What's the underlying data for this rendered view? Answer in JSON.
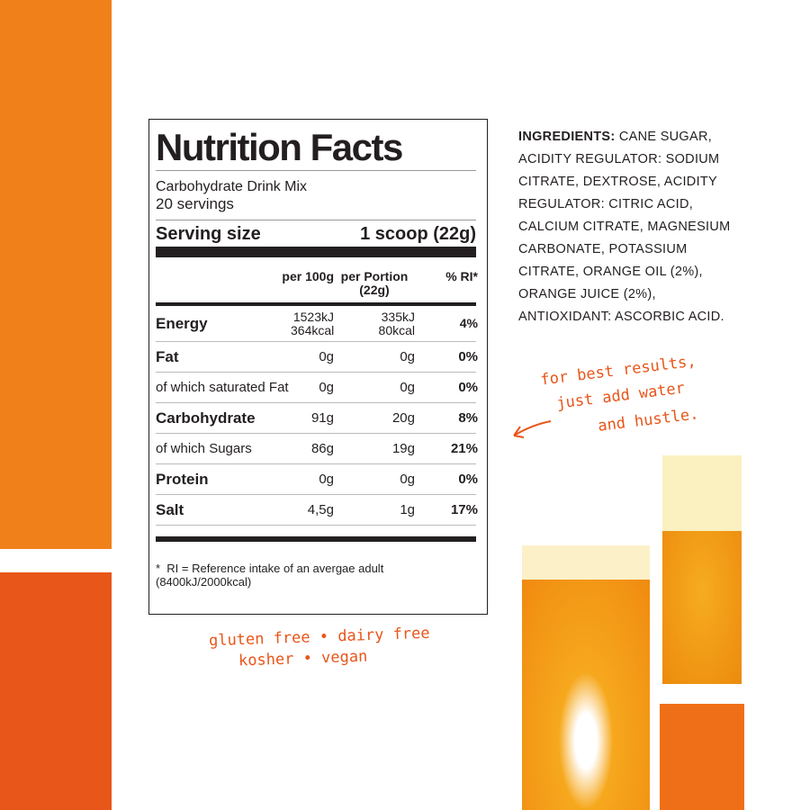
{
  "colors": {
    "bar_top": "#f08019",
    "bar_bottom": "#e8561a",
    "handwriting": "#e8561a"
  },
  "label": {
    "title": "Nutrition Facts",
    "product": "Carbohydrate Drink Mix",
    "servings": "20 servings",
    "serving_size_label": "Serving size",
    "serving_size_value": "1 scoop (22g)",
    "columns": [
      "per 100g",
      "per Portion (22g)",
      "% RI*"
    ],
    "rows": [
      {
        "name": "Energy",
        "per100": "1523kJ 364kcal",
        "portion": "335kJ 80kcal",
        "ri": "4%",
        "bold": true
      },
      {
        "name": "Fat",
        "per100": "0g",
        "portion": "0g",
        "ri": "0%",
        "bold": true
      },
      {
        "name": "of which saturated Fat",
        "per100": "0g",
        "portion": "0g",
        "ri": "0%",
        "bold": false
      },
      {
        "name": "Carbohydrate",
        "per100": "91g",
        "portion": "20g",
        "ri": "8%",
        "bold": true
      },
      {
        "name": "of which Sugars",
        "per100": "86g",
        "portion": "19g",
        "ri": "21%",
        "bold": false
      },
      {
        "name": "Protein",
        "per100": "0g",
        "portion": "0g",
        "ri": "0%",
        "bold": true
      },
      {
        "name": "Salt",
        "per100": "4,5g",
        "portion": "1g",
        "ri": "17%",
        "bold": true
      }
    ],
    "footnote_mark": "*",
    "footnote": "RI = Reference intake of an avergae adult (8400kJ/2000kcal)"
  },
  "ingredients": {
    "heading": "INGREDIENTS:",
    "text": "CANE SUGAR, ACIDITY REGULATOR: SODIUM CITRATE, DEXTROSE, ACIDITY REGULATOR: CITRIC ACID, CALCIUM CITRATE, MAGNESIUM CARBONATE, POTASSIUM CITRATE, ORANGE OIL (2%), ORANGE JUICE (2%), ANTIOXIDANT: ASCORBIC ACID."
  },
  "tagline": [
    "for best results,",
    "just add water",
    "and hustle."
  ],
  "claims": [
    "gluten free • dairy free",
    "kosher • vegan"
  ]
}
